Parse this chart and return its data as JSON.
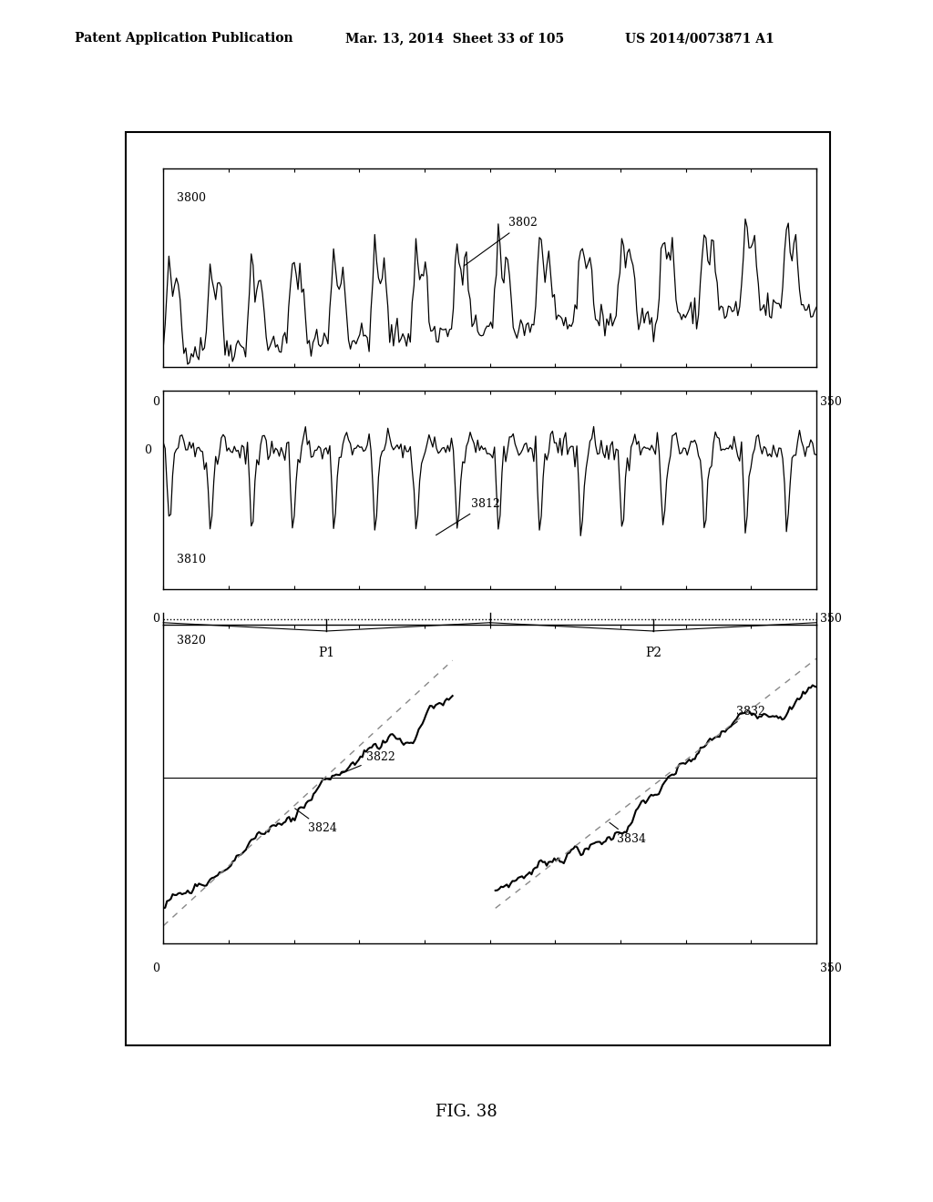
{
  "title_line1": "Patent Application Publication",
  "title_line2": "Mar. 13, 2014  Sheet 33 of 105",
  "title_line3": "US 2014/0073871 A1",
  "fig_label": "FIG. 38",
  "xlabel_val": "350",
  "xlabel_zero": "0",
  "panel1_label": "3800",
  "panel1_annotation": "3802",
  "panel2_label": "3810",
  "panel2_zero": "0",
  "panel2_annotation": "3812",
  "panel3_label": "3820",
  "p1_label": "P1",
  "p2_label": "P2",
  "bg_color": "#ffffff",
  "line_color": "#000000",
  "dashed_color": "#888888"
}
